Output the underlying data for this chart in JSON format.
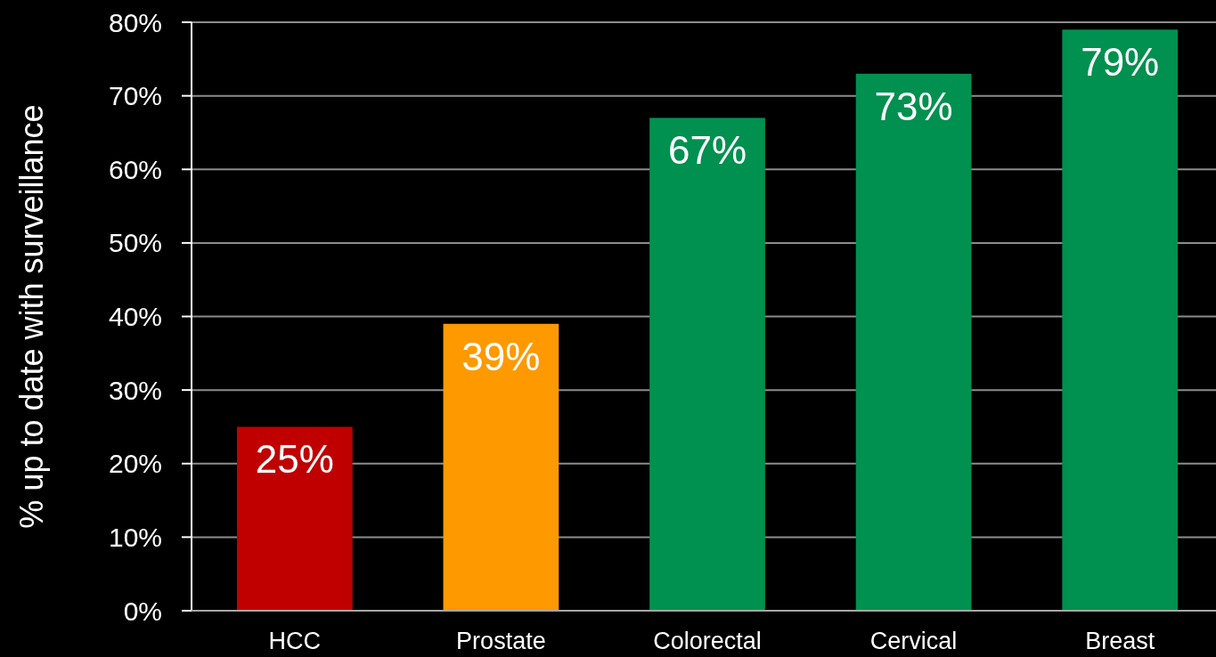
{
  "chart_data": {
    "type": "bar",
    "ylabel": "% up to date with surveillance",
    "categories": [
      "HCC",
      "Prostate",
      "Colorectal",
      "Cervical",
      "Breast"
    ],
    "values": [
      25,
      39,
      67,
      73,
      79
    ],
    "colors": [
      "#c00000",
      "#ff9900",
      "#00904f",
      "#00904f",
      "#00904f"
    ],
    "value_labels": [
      "25%",
      "39%",
      "67%",
      "73%",
      "79%"
    ],
    "ylim": [
      0,
      80
    ],
    "yticks": [
      {
        "value": 0,
        "label": "0%"
      },
      {
        "value": 10,
        "label": "10%"
      },
      {
        "value": 20,
        "label": "20%"
      },
      {
        "value": 30,
        "label": "30%"
      },
      {
        "value": 40,
        "label": "40%"
      },
      {
        "value": 50,
        "label": "50%"
      },
      {
        "value": 60,
        "label": "60%"
      },
      {
        "value": 70,
        "label": "70%"
      },
      {
        "value": 80,
        "label": "80%"
      }
    ],
    "grid": "y"
  }
}
